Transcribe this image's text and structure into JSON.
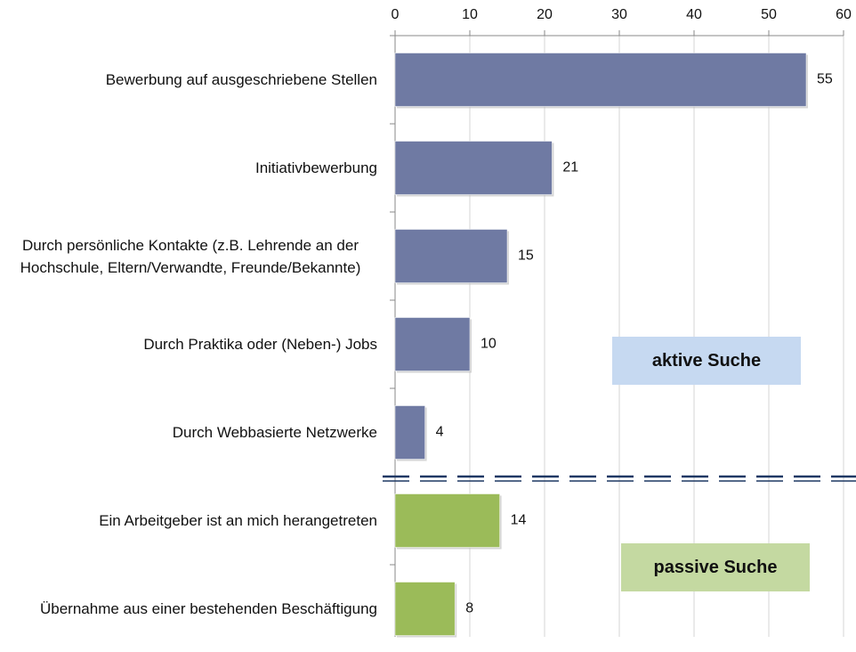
{
  "chart_data": {
    "type": "barh",
    "categories": [
      "Bewerbung auf ausgeschriebene Stellen",
      "Initiativbewerbung",
      "Durch persönliche Kontakte (z.B. Lehrende an der Hochschule, Eltern/Verwandte, Freunde/Bekannte)",
      "Durch Praktika oder (Neben-) Jobs",
      "Durch Webbasierte Netzwerke",
      "Ein Arbeitgeber ist an mich herangetreten",
      "Übernahme aus einer bestehenden Beschäftigung"
    ],
    "values": [
      55,
      21,
      15,
      10,
      4,
      14,
      8
    ],
    "colors": [
      "#6f7aa3",
      "#6f7aa3",
      "#6f7aa3",
      "#6f7aa3",
      "#6f7aa3",
      "#9bbb59",
      "#9bbb59"
    ],
    "xlim": [
      0,
      60
    ],
    "xticks": [
      0,
      10,
      20,
      30,
      40,
      50,
      60
    ],
    "grid": true,
    "annotations": [
      {
        "text": "aktive Suche",
        "color": "#c6d9f1"
      },
      {
        "text": "passive Suche",
        "color": "#c4d9a1"
      }
    ]
  }
}
